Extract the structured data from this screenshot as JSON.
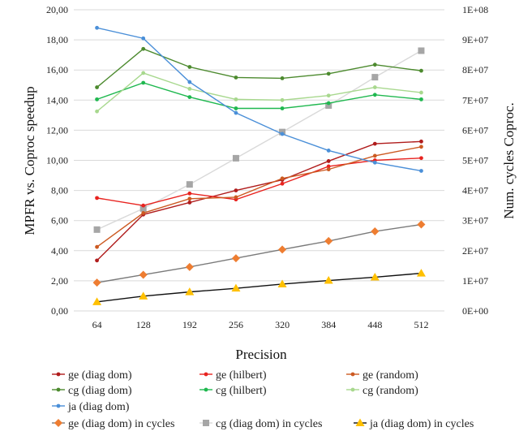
{
  "chart_data": {
    "type": "line",
    "xlabel": "Precision",
    "ylabel_left": "MPFR vs. Coproc speedup",
    "ylabel_right": "Num. cycles Coproc.",
    "categories": [
      "64",
      "128",
      "192",
      "256",
      "320",
      "384",
      "448",
      "512"
    ],
    "ylim_left": [
      0,
      20
    ],
    "ylim_right": [
      0,
      100000000
    ],
    "left_ticks": [
      "0,00",
      "2,00",
      "4,00",
      "6,00",
      "8,00",
      "10,00",
      "12,00",
      "14,00",
      "16,00",
      "18,00",
      "20,00"
    ],
    "right_ticks": [
      "0E+00",
      "1E+07",
      "2E+07",
      "3E+07",
      "4E+07",
      "5E+07",
      "6E+07",
      "7E+07",
      "8E+07",
      "9E+07",
      "1E+08"
    ],
    "grid": true,
    "legend_position": "bottom",
    "series": [
      {
        "name": "ge (diag dom)",
        "axis": "left",
        "color": "#b01c1c",
        "marker": "circle",
        "values": [
          3.35,
          6.4,
          7.2,
          8.0,
          8.7,
          9.95,
          11.1,
          11.25
        ]
      },
      {
        "name": "ge (hilbert)",
        "axis": "left",
        "color": "#e8231f",
        "marker": "circle",
        "values": [
          7.5,
          7.0,
          7.8,
          7.4,
          8.45,
          9.6,
          10.0,
          10.15
        ]
      },
      {
        "name": "ge (random)",
        "axis": "left",
        "color": "#cc5a22",
        "marker": "circle",
        "values": [
          4.25,
          6.5,
          7.45,
          7.55,
          8.8,
          9.4,
          10.3,
          10.9
        ]
      },
      {
        "name": "cg (diag dom)",
        "axis": "left",
        "color": "#4c8a2e",
        "marker": "circle",
        "values": [
          14.85,
          17.4,
          16.2,
          15.5,
          15.45,
          15.75,
          16.35,
          15.95
        ]
      },
      {
        "name": "cg (hilbert)",
        "axis": "left",
        "color": "#1fb84f",
        "marker": "circle",
        "values": [
          14.05,
          15.15,
          14.2,
          13.45,
          13.45,
          13.8,
          14.35,
          14.05
        ]
      },
      {
        "name": "cg (random)",
        "axis": "left",
        "color": "#a8d88e",
        "marker": "circle",
        "values": [
          13.25,
          15.8,
          14.75,
          14.05,
          14.0,
          14.3,
          14.85,
          14.5
        ]
      },
      {
        "name": "ja (diag dom)",
        "axis": "left",
        "color": "#4a8fd8",
        "marker": "circle",
        "values": [
          18.8,
          18.1,
          15.2,
          13.15,
          11.75,
          10.65,
          9.85,
          9.3
        ]
      },
      {
        "name": "ge (diag dom) in cycles",
        "axis": "right",
        "color": "#ee7d31",
        "line_color": "#7a7a7a",
        "marker": "diamond",
        "values": [
          9400000,
          12000000,
          14600000,
          17500000,
          20400000,
          23200000,
          26400000,
          28700000
        ]
      },
      {
        "name": "cg (diag dom) in cycles",
        "axis": "right",
        "color": "#a6a6a6",
        "line_color": "#d9d9d9",
        "marker": "square",
        "values": [
          27000000,
          34000000,
          42000000,
          50700000,
          59400000,
          68200000,
          77600000,
          86400000
        ]
      },
      {
        "name": "ja (diag dom) in cycles",
        "axis": "right",
        "color": "#ffc000",
        "line_color": "#111111",
        "marker": "triangle",
        "values": [
          3000000,
          4900000,
          6300000,
          7500000,
          8900000,
          10100000,
          11200000,
          12500000
        ]
      }
    ]
  }
}
